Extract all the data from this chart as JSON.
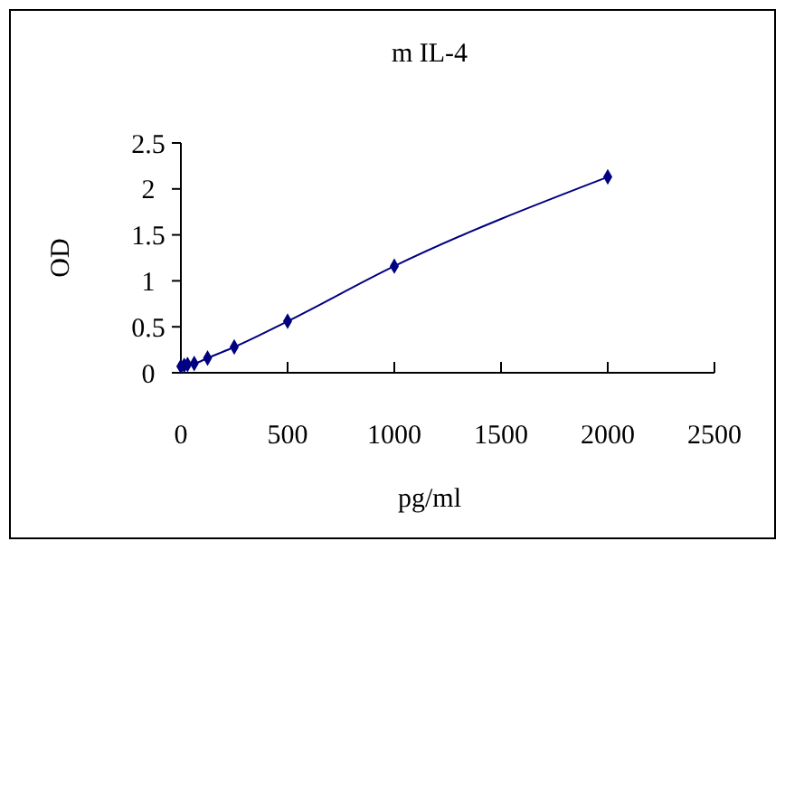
{
  "chart_data": {
    "type": "line",
    "title": "m IL-4",
    "xlabel": "pg/ml",
    "ylabel": "OD",
    "x": [
      0,
      15.6,
      31.25,
      62.5,
      125,
      250,
      500,
      1000,
      2000
    ],
    "series": [
      {
        "color": "#000080",
        "values": [
          0.07,
          0.08,
          0.09,
          0.1,
          0.16,
          0.28,
          0.56,
          1.16,
          2.13
        ]
      }
    ],
    "xlim": [
      0,
      2500
    ],
    "xticks": [
      0,
      500,
      1000,
      1500,
      2000,
      2500
    ],
    "ylim": [
      0,
      2.5
    ],
    "yticks": [
      0,
      {
        "value": 0.5,
        "label": "0.5"
      },
      1,
      {
        "value": 1.5,
        "label": "1.5"
      },
      2,
      {
        "value": 2.5,
        "label": "2.5"
      }
    ],
    "marker": "diamond",
    "grid": false
  }
}
